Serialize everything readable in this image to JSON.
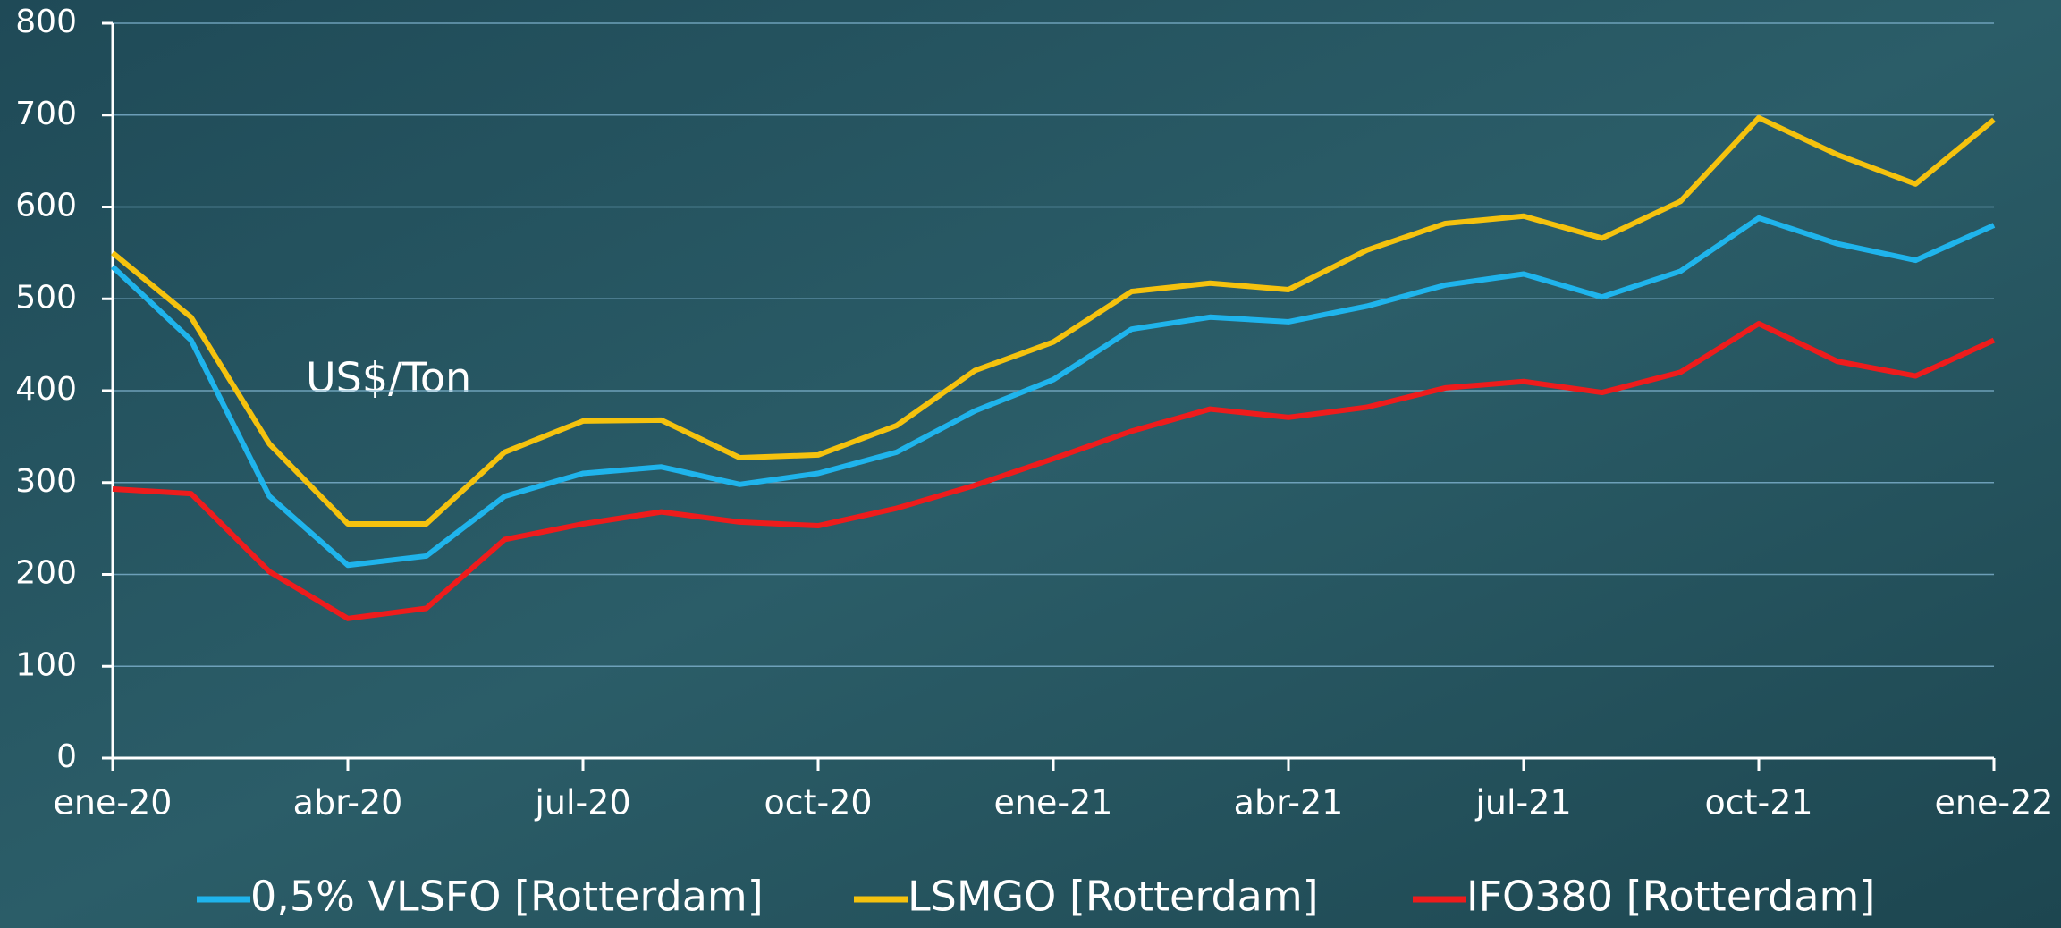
{
  "chart_data": {
    "type": "line",
    "annotation": "US$/Ton",
    "categories": [
      "ene-20",
      null,
      null,
      "abr-20",
      null,
      null,
      "jul-20",
      null,
      null,
      "oct-20",
      null,
      null,
      "ene-21",
      null,
      null,
      "abr-21",
      null,
      null,
      "jul-21",
      null,
      null,
      "oct-21",
      null,
      null,
      "ene-22"
    ],
    "series": [
      {
        "name": "0,5% VLSFO [Rotterdam]",
        "color": "#1fb4ec",
        "values": [
          535,
          455,
          285,
          210,
          220,
          285,
          310,
          317,
          298,
          310,
          333,
          378,
          412,
          467,
          480,
          475,
          492,
          515,
          527,
          502,
          530,
          588,
          560,
          542,
          580
        ]
      },
      {
        "name": "LSMGO [Rotterdam]",
        "color": "#f5c20e",
        "values": [
          550,
          480,
          342,
          255,
          255,
          333,
          367,
          368,
          327,
          330,
          362,
          422,
          453,
          508,
          517,
          510,
          553,
          582,
          590,
          566,
          606,
          697,
          657,
          625,
          695
        ]
      },
      {
        "name": "IFO380 [Rotterdam]",
        "color": "#ee1c1c",
        "values": [
          293,
          288,
          203,
          152,
          163,
          238,
          255,
          268,
          257,
          253,
          272,
          297,
          326,
          356,
          380,
          371,
          382,
          403,
          410,
          398,
          420,
          473,
          432,
          416,
          455
        ]
      }
    ],
    "ylim": [
      0,
      800
    ],
    "yticks": [
      0,
      100,
      200,
      300,
      400,
      500,
      600,
      700,
      800
    ],
    "grid": true
  }
}
